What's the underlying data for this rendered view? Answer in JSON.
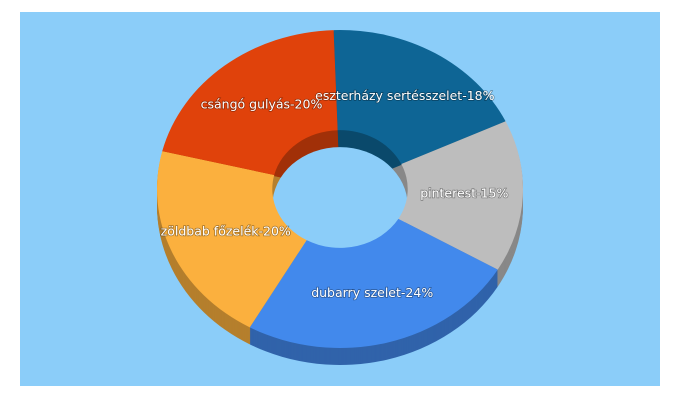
{
  "chart_data": {
    "type": "donut3d",
    "values": [
      18,
      15,
      24,
      20,
      20
    ],
    "value_labels": [
      "eszterházy sertésszelet-18%",
      "pinterest-15%",
      "dubarry szelet-24%",
      "zöldbab főzelék-20%",
      "csángó gulyás-20%"
    ],
    "colors": [
      "#0e6595",
      "#bdbdbd",
      "#4289ec",
      "#fbb03e",
      "#e0420b"
    ]
  }
}
